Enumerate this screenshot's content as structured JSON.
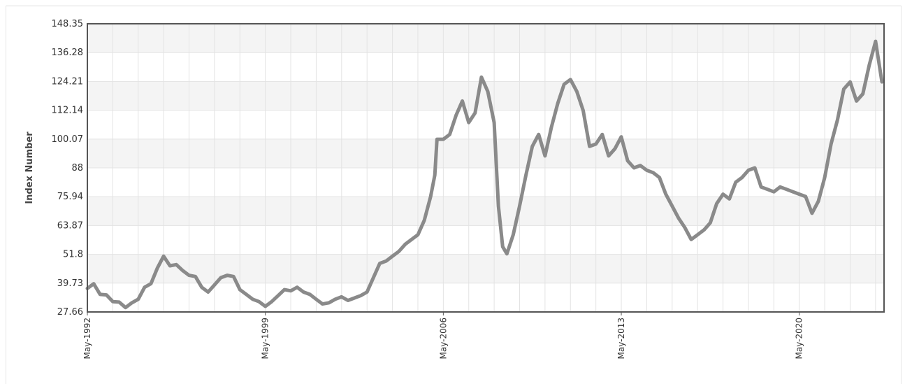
{
  "chart_data": {
    "type": "line",
    "title": "",
    "xlabel": "",
    "ylabel": "Index Number",
    "ylim": [
      27.66,
      148.35
    ],
    "xlim": [
      "1992-05",
      "2023-09"
    ],
    "y_ticks": [
      "148.35",
      "136.28",
      "124.21",
      "112.14",
      "100.07",
      "88",
      "75.94",
      "63.87",
      "51.8",
      "39.73",
      "27.66"
    ],
    "x_ticks": [
      {
        "label": "May-1992",
        "date": "1992-05"
      },
      {
        "label": "May-1999",
        "date": "1999-05"
      },
      {
        "label": "May-2006",
        "date": "2006-05"
      },
      {
        "label": "May-2013",
        "date": "2013-05"
      },
      {
        "label": "May-2020",
        "date": "2020-05"
      }
    ],
    "grid": true,
    "line_color": "#8a8a8a",
    "band_color": "#f4f4f4",
    "series": [
      {
        "x": [
          "1992-05",
          "1992-08",
          "1992-11",
          "1993-02",
          "1993-05",
          "1993-08",
          "1993-11",
          "1994-02",
          "1994-05",
          "1994-08",
          "1994-11",
          "1995-02",
          "1995-05",
          "1995-08",
          "1995-11",
          "1996-02",
          "1996-05",
          "1996-08",
          "1996-11",
          "1997-02",
          "1997-05",
          "1997-08",
          "1997-11",
          "1998-02",
          "1998-05",
          "1998-08",
          "1998-11",
          "1999-02",
          "1999-05",
          "1999-08",
          "1999-11",
          "2000-02",
          "2000-05",
          "2000-08",
          "2000-11",
          "2001-02",
          "2001-05",
          "2001-08",
          "2001-11",
          "2002-02",
          "2002-05",
          "2002-08",
          "2002-11",
          "2003-02",
          "2003-05",
          "2003-08",
          "2003-11",
          "2004-02",
          "2004-05",
          "2004-08",
          "2004-11",
          "2005-02",
          "2005-05",
          "2005-08",
          "2005-11",
          "2006-01",
          "2006-02",
          "2006-05",
          "2006-08",
          "2006-11",
          "2007-02",
          "2007-05",
          "2007-08",
          "2007-11",
          "2008-02",
          "2008-05",
          "2008-07",
          "2008-09",
          "2008-11",
          "2009-02",
          "2009-05",
          "2009-08",
          "2009-11",
          "2010-02",
          "2010-05",
          "2010-08",
          "2010-11",
          "2011-02",
          "2011-05",
          "2011-08",
          "2011-11",
          "2012-02",
          "2012-05",
          "2012-08",
          "2012-11",
          "2013-02",
          "2013-05",
          "2013-08",
          "2013-11",
          "2014-02",
          "2014-05",
          "2014-08",
          "2014-11",
          "2015-02",
          "2015-05",
          "2015-08",
          "2015-11",
          "2016-02",
          "2016-05",
          "2016-08",
          "2016-11",
          "2017-02",
          "2017-05",
          "2017-08",
          "2017-11",
          "2018-02",
          "2018-05",
          "2018-08",
          "2018-11",
          "2019-02",
          "2019-05",
          "2019-08",
          "2019-11",
          "2020-02",
          "2020-05",
          "2020-08",
          "2020-11",
          "2021-02",
          "2021-05",
          "2021-08",
          "2021-11",
          "2022-02",
          "2022-05",
          "2022-08",
          "2022-11",
          "2023-02",
          "2023-05",
          "2023-08"
        ],
        "values": [
          37.5,
          39.5,
          35.0,
          34.8,
          32.0,
          31.8,
          29.5,
          31.5,
          33.0,
          38.0,
          39.5,
          46.0,
          51.0,
          47.0,
          47.5,
          45.0,
          43.0,
          42.5,
          38.0,
          36.0,
          39.0,
          42.0,
          43.0,
          42.5,
          37.0,
          35.0,
          33.0,
          32.0,
          30.0,
          32.0,
          34.5,
          37.0,
          36.5,
          38.0,
          36.0,
          35.0,
          33.0,
          31.0,
          31.5,
          33.0,
          34.0,
          32.5,
          33.5,
          34.5,
          36.0,
          42.0,
          48.0,
          49.0,
          51.0,
          53.0,
          56.0,
          58.0,
          60.0,
          66.0,
          76.0,
          85.0,
          100.0,
          100.0,
          102.0,
          110.0,
          116.0,
          107.0,
          111.0,
          126.0,
          120.0,
          107.0,
          72.0,
          55.0,
          52.0,
          60.0,
          72.0,
          85.0,
          97.0,
          102.0,
          93.0,
          105.0,
          115.0,
          123.0,
          125.0,
          120.0,
          112.0,
          97.0,
          98.0,
          102.0,
          93.0,
          96.0,
          101.0,
          91.0,
          88.0,
          89.0,
          87.0,
          86.0,
          84.0,
          77.0,
          72.0,
          67.0,
          63.0,
          58.0,
          60.0,
          62.0,
          65.0,
          73.0,
          77.0,
          75.0,
          82.0,
          84.0,
          87.0,
          88.0,
          80.0,
          79.0,
          78.0,
          80.0,
          79.0,
          78.0,
          77.0,
          76.0,
          69.0,
          74.0,
          84.0,
          98.0,
          108.0,
          121.0,
          124.0,
          116.0,
          119.0,
          131.0,
          141.0,
          124.0
        ]
      }
    ]
  }
}
